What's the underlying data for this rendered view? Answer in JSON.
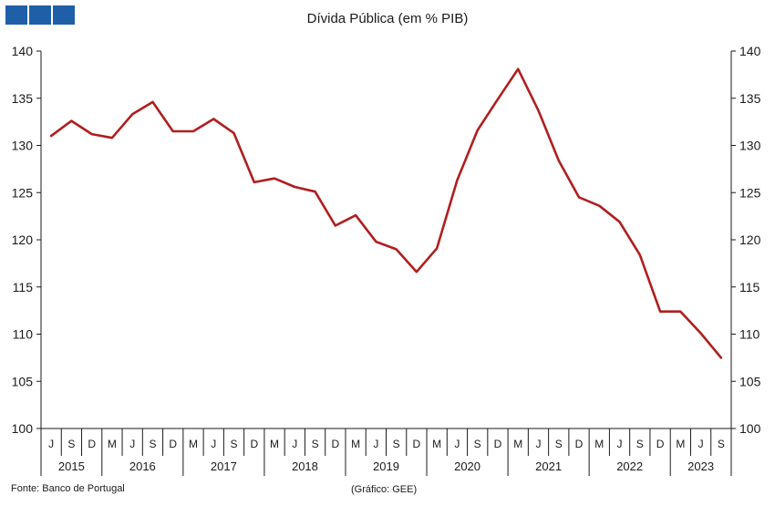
{
  "title": "Dívida Pública (em % PIB)",
  "logo": {
    "color": "#1f5fa8",
    "blocks": 3
  },
  "source": "Fonte: Banco de Portugal",
  "credit": "(Gráfico: GEE)",
  "colors": {
    "line": "#b01e1e",
    "axis": "#1a1a1a"
  },
  "chart_data": {
    "type": "line",
    "title": "Dívida Pública (em % PIB)",
    "xlabel": "",
    "ylabel": "",
    "ylim": [
      100,
      140
    ],
    "yticks": [
      100,
      105,
      110,
      115,
      120,
      125,
      130,
      135,
      140
    ],
    "y_axes": "left-and-right",
    "grid": false,
    "legend": "none",
    "x_tick_labels": [
      "J",
      "S",
      "D",
      "M",
      "J",
      "S",
      "D",
      "M",
      "J",
      "S",
      "D",
      "M",
      "J",
      "S",
      "D",
      "M",
      "J",
      "S",
      "D",
      "M",
      "J",
      "S",
      "D",
      "M",
      "J",
      "S",
      "D",
      "M",
      "J",
      "S",
      "D",
      "M",
      "J",
      "S"
    ],
    "years": [
      {
        "label": "2015",
        "quarters": 3
      },
      {
        "label": "2016",
        "quarters": 4
      },
      {
        "label": "2017",
        "quarters": 4
      },
      {
        "label": "2018",
        "quarters": 4
      },
      {
        "label": "2019",
        "quarters": 4
      },
      {
        "label": "2020",
        "quarters": 4
      },
      {
        "label": "2021",
        "quarters": 4
      },
      {
        "label": "2022",
        "quarters": 4
      },
      {
        "label": "2023",
        "quarters": 3
      }
    ],
    "series": [
      {
        "name": "",
        "color": "#b01e1e",
        "values": [
          131.0,
          132.6,
          131.2,
          130.8,
          133.3,
          134.6,
          131.5,
          131.5,
          132.8,
          131.3,
          126.1,
          126.5,
          125.6,
          125.1,
          121.5,
          122.6,
          119.8,
          119.0,
          116.6,
          119.1,
          126.3,
          131.6,
          134.9,
          138.1,
          133.7,
          128.4,
          124.5,
          123.6,
          121.9,
          118.4,
          112.4,
          112.4,
          110.1,
          107.5
        ]
      }
    ]
  }
}
